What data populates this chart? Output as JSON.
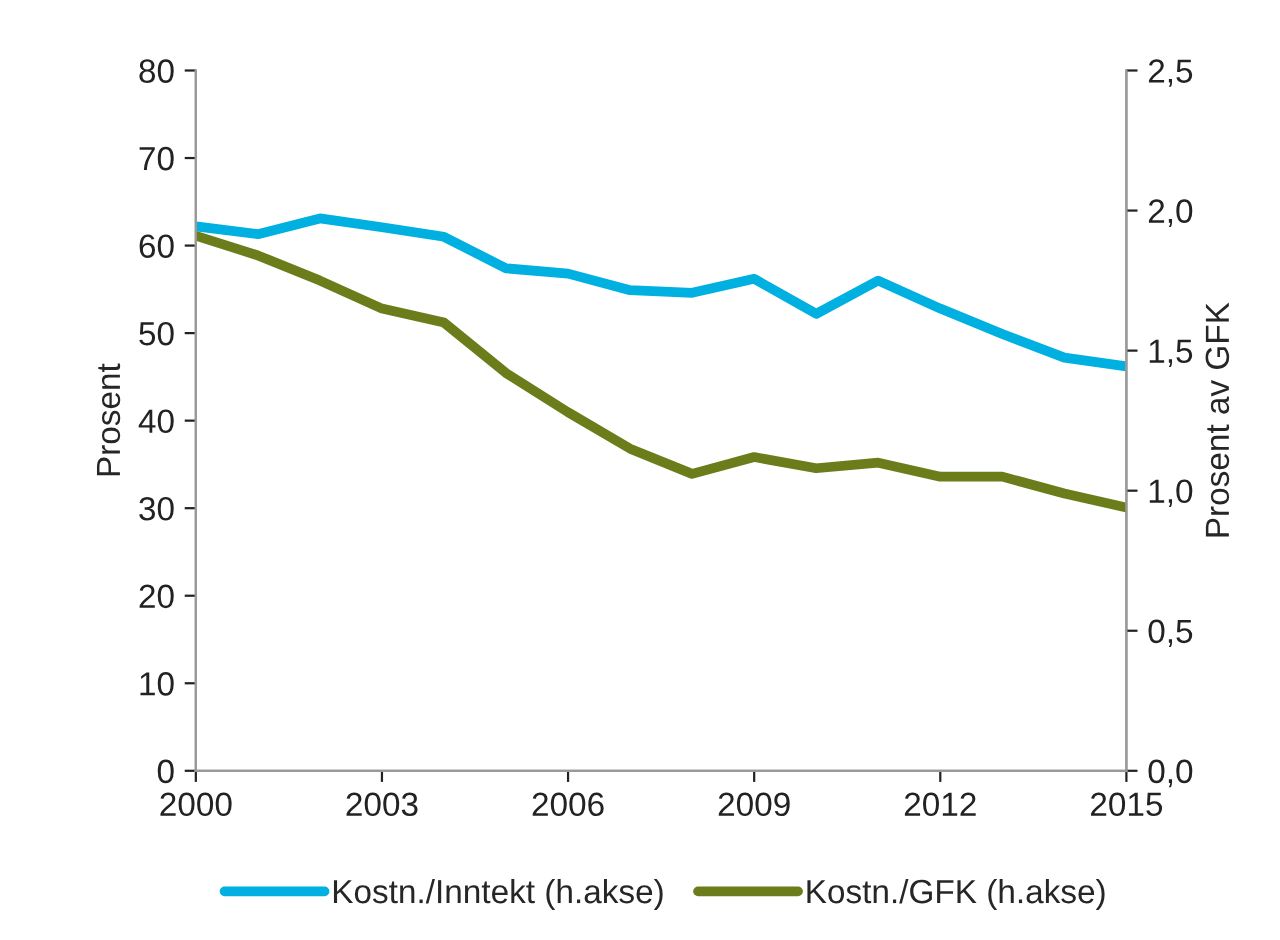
{
  "chart_data": {
    "type": "line",
    "ylabel": "Prosent",
    "y2label": "Prosent av GFK",
    "x": [
      2000,
      2001,
      2002,
      2003,
      2004,
      2005,
      2006,
      2007,
      2008,
      2009,
      2010,
      2011,
      2012,
      2013,
      2014,
      2015
    ],
    "series": [
      {
        "name": "Kostn./Inntekt (h.akse)",
        "color": "#00b0e0",
        "values": [
          62.2,
          61.3,
          63.1,
          62.1,
          61.0,
          57.4,
          56.8,
          54.9,
          54.6,
          56.2,
          52.2,
          56.0,
          52.8,
          49.9,
          47.2,
          46.2
        ]
      },
      {
        "name": "Kostn./GFK (h.akse)",
        "color": "#6b7d1a",
        "axis": "y2",
        "values": [
          1.91,
          1.84,
          1.75,
          1.65,
          1.6,
          1.42,
          1.28,
          1.15,
          1.06,
          1.12,
          1.08,
          1.1,
          1.05,
          1.05,
          0.99,
          0.94
        ]
      }
    ],
    "xlim": [
      2000,
      2015
    ],
    "xticks": [
      2000,
      2003,
      2006,
      2009,
      2012,
      2015
    ],
    "ylim": [
      0,
      80
    ],
    "yticks": [
      0,
      10,
      20,
      30,
      40,
      50,
      60,
      70,
      80
    ],
    "y2lim": [
      0,
      2.5
    ],
    "y2ticks": [
      {
        "value": 0,
        "label": "0,0"
      },
      {
        "value": 0.5,
        "label": "0,5"
      },
      {
        "value": 1,
        "label": "1,0"
      },
      {
        "value": 1.5,
        "label": "1,5"
      },
      {
        "value": 2,
        "label": "2,0"
      },
      {
        "value": 2.5,
        "label": "2,5"
      }
    ],
    "grid": false,
    "legend": "bottom",
    "marker": "none",
    "line_style": "solid"
  }
}
